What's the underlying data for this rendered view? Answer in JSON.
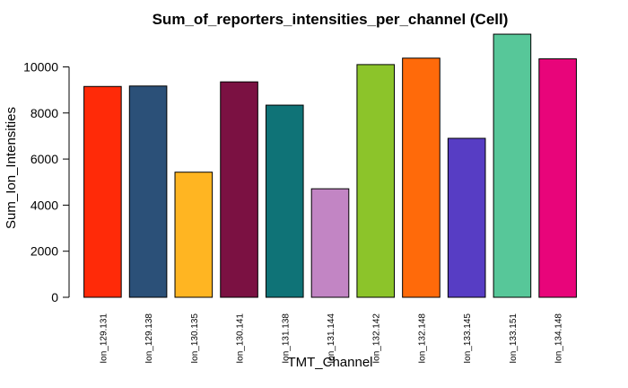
{
  "chart_data": {
    "type": "bar",
    "title": "Sum_of_reporters_intensities_per_channel (Cell)",
    "xlabel": "TMT_Channel",
    "ylabel": "Sum_Ion_Intensities",
    "ylim": [
      0,
      11500
    ],
    "yticks": [
      0,
      2000,
      4000,
      6000,
      8000,
      10000
    ],
    "categories": [
      "Ion_129.131",
      "Ion_129.138",
      "Ion_130.135",
      "Ion_130.141",
      "Ion_131.138",
      "Ion_131.144",
      "Ion_132.142",
      "Ion_132.148",
      "Ion_133.145",
      "Ion_133.151",
      "Ion_134.148"
    ],
    "values": [
      9150,
      9170,
      5430,
      9350,
      8340,
      4710,
      10100,
      10380,
      6900,
      11420,
      10350
    ],
    "colors": [
      "#FF2A08",
      "#2B5078",
      "#FFB522",
      "#7B1142",
      "#0F7377",
      "#C285C4",
      "#8CC42A",
      "#FF6A0A",
      "#573DC4",
      "#57C799",
      "#E8057A"
    ],
    "grid": false,
    "legend": "none"
  }
}
